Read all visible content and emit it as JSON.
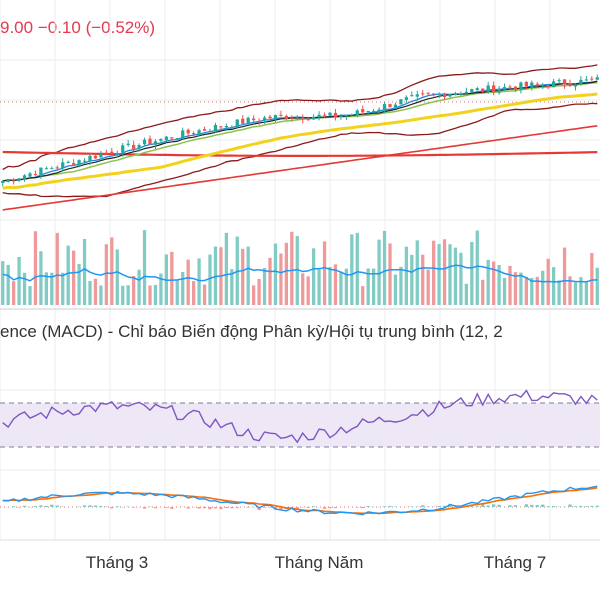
{
  "header": {
    "price_fragment": "9.00",
    "change": "−0.10",
    "change_pct": "(−0.52%)"
  },
  "macd_title": "ence (MACD) - Chỉ báo Biến động Phân kỳ/Hội tụ trung bình (12, 2",
  "x_axis": {
    "labels": [
      "Tháng 3",
      "Tháng Năm",
      "Tháng 7"
    ]
  },
  "colors": {
    "up": "#26a69a",
    "down": "#ef5350",
    "price_text": "#e53950",
    "rsi_line": "#7e57c2",
    "rsi_band": "#ede7f6",
    "volume_ma": "#2196f3",
    "macd_line": "#2196f3",
    "signal_line": "#ff6d00",
    "ma_fast": "#1e88e5",
    "ma_slow": "#f2d21c",
    "ma_long": "#e53935",
    "bb": "#8b1a1a",
    "grid": "#eeeeee"
  },
  "chart_data": [
    {
      "type": "candlestick",
      "name": "price",
      "n": 110,
      "start": 100,
      "end": 122,
      "trend_shape": "rise, plateau, dip, then rise",
      "indicators": [
        "MA fast",
        "MA mid",
        "MA slow",
        "MA long",
        "Bollinger bands"
      ]
    },
    {
      "type": "bar",
      "name": "volume",
      "with_moving_average": true
    },
    {
      "type": "line",
      "name": "RSI",
      "band": [
        30,
        70
      ],
      "ylim": [
        0,
        100
      ]
    },
    {
      "type": "line",
      "name": "MACD",
      "series": [
        "MACD",
        "Signal",
        "Histogram"
      ]
    }
  ]
}
